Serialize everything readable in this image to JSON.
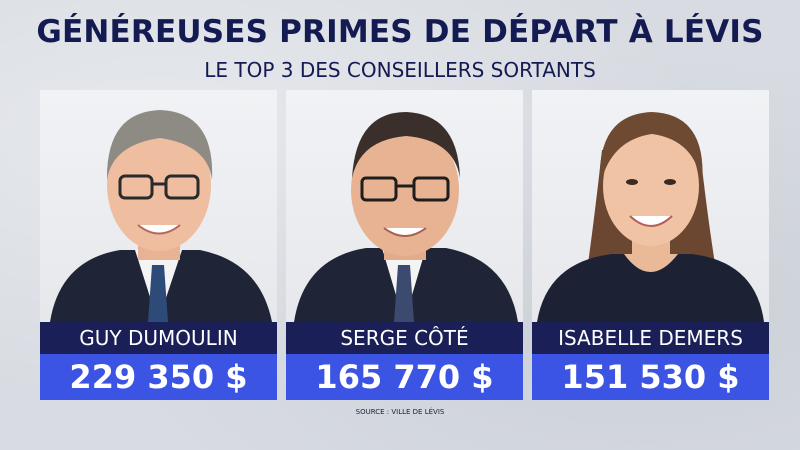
{
  "header": {
    "title": "GÉNÉREUSES PRIMES DE DÉPART À LÉVIS",
    "subtitle": "LE TOP 3 DES CONSEILLERS SORTANTS"
  },
  "cards": [
    {
      "name": "GUY DUMOULIN",
      "amount": "229 350 $"
    },
    {
      "name": "SERGE CÔTÉ",
      "amount": "165 770 $"
    },
    {
      "name": "ISABELLE DEMERS",
      "amount": "151 530 $"
    }
  ],
  "footer": {
    "source": "SOURCE : VILLE DE LÉVIS"
  },
  "colors": {
    "title": "#141a52",
    "name_bar": "#1a1f57",
    "amount_bar": "#3b54e3",
    "background": "#d8dce2"
  }
}
